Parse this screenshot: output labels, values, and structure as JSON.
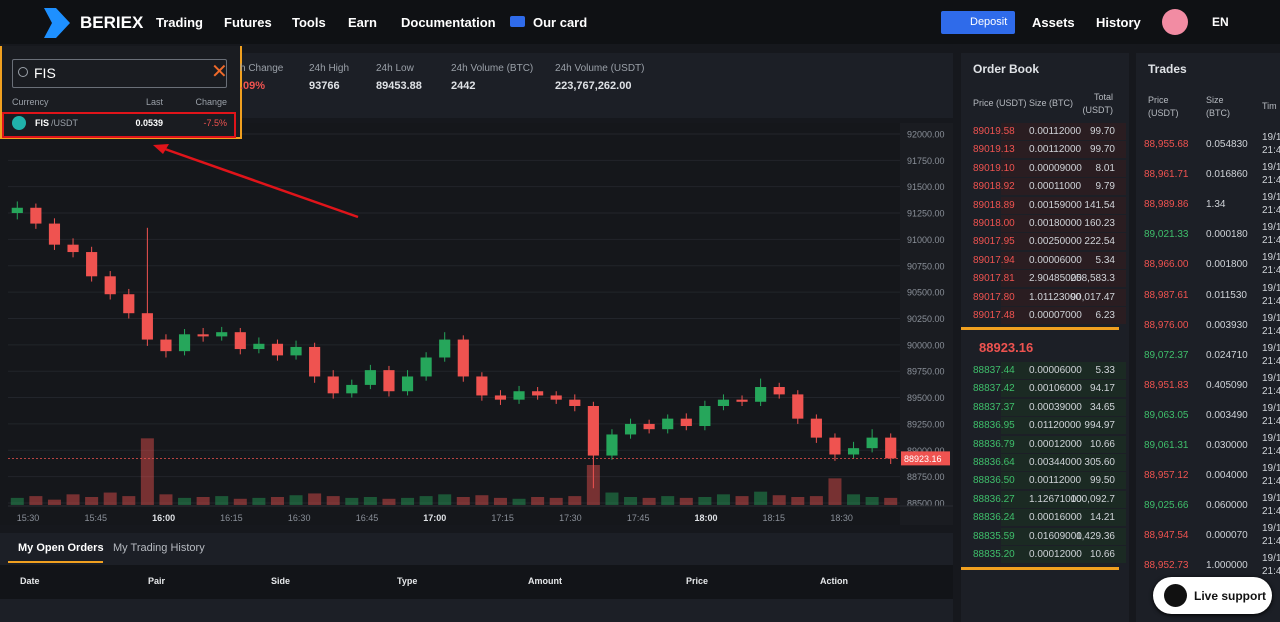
{
  "nav": {
    "logo": "BERIEX",
    "menu": [
      "Trading",
      "Futures",
      "Tools",
      "Earn",
      "Documentation",
      "Our card"
    ],
    "deposit": "Deposit",
    "right": [
      "Assets",
      "History"
    ],
    "lang": "EN"
  },
  "search": {
    "query": "FIS",
    "headers": [
      "Currency",
      "Last",
      "Change"
    ],
    "result": {
      "base": "FIS",
      "quote": "/USDT",
      "last": "0.0539",
      "change": "-7.5%"
    }
  },
  "stats": [
    {
      "label": "h Change",
      "value": ".09%"
    },
    {
      "label": "24h High",
      "value": "93766"
    },
    {
      "label": "24h Low",
      "value": "89453.88"
    },
    {
      "label": "24h Volume (BTC)",
      "value": "2442"
    },
    {
      "label": "24h Volume (USDT)",
      "value": "223,767,262.00"
    }
  ],
  "chart": {
    "type": "candlestick",
    "up_color": "#26a65b",
    "down_color": "#ef5350",
    "ylim": [
      88481,
      92085
    ],
    "yticks": [
      {
        "value": 92000,
        "label": "92000.00"
      },
      {
        "value": 91750,
        "label": "91750.00"
      },
      {
        "value": 91500,
        "label": "91500.00"
      },
      {
        "value": 91250,
        "label": "91250.00"
      },
      {
        "value": 91000,
        "label": "91000.00"
      },
      {
        "value": 90750,
        "label": "90750.00"
      },
      {
        "value": 90500,
        "label": "90500.00"
      },
      {
        "value": 90250,
        "label": "90250.00"
      },
      {
        "value": 90000,
        "label": "90000.00"
      },
      {
        "value": 89750,
        "label": "89750.00"
      },
      {
        "value": 89500,
        "label": "89500.00"
      },
      {
        "value": 89250,
        "label": "89250.00"
      },
      {
        "value": 89000,
        "label": "89000.00"
      },
      {
        "value": 88750,
        "label": "88750.00"
      },
      {
        "value": 88500,
        "label": "88500.00"
      }
    ],
    "x_labels": [
      "15:30",
      "15:45",
      "16:00",
      "16:15",
      "16:30",
      "16:45",
      "17:00",
      "17:15",
      "17:30",
      "17:45",
      "18:00",
      "18:15",
      "18:30"
    ],
    "last_price": {
      "value": 88923.16,
      "label": "88923.16"
    },
    "open": [
      91250,
      91300,
      91150,
      90950,
      90880,
      90650,
      90480,
      90300,
      90050,
      89940,
      90100,
      90080,
      90120,
      89960,
      90010,
      89900,
      89980,
      89700,
      89540,
      89620,
      89760,
      89560,
      89700,
      89880,
      90050,
      89700,
      89520,
      89480,
      89560,
      89520,
      89480,
      89420,
      88950,
      89150,
      89250,
      89200,
      89300,
      89230,
      89420,
      89480,
      89460,
      89600,
      89530,
      89300,
      89120,
      88960,
      89020,
      89120
    ],
    "high": [
      91360,
      91340,
      91200,
      91010,
      90930,
      90700,
      90530,
      91110,
      90100,
      90150,
      90160,
      90170,
      90160,
      90070,
      90050,
      90040,
      90020,
      89760,
      89670,
      89810,
      89800,
      89760,
      89930,
      90120,
      90090,
      89740,
      89570,
      89610,
      89600,
      89560,
      89530,
      89460,
      89200,
      89300,
      89290,
      89340,
      89350,
      89470,
      89530,
      89520,
      89680,
      89640,
      89570,
      89340,
      89160,
      89080,
      89200,
      89160
    ],
    "low": [
      91190,
      91100,
      90900,
      90830,
      90600,
      90430,
      90250,
      89990,
      89880,
      89900,
      90030,
      90040,
      89910,
      89920,
      89850,
      89860,
      89640,
      89490,
      89500,
      89580,
      89510,
      89520,
      89660,
      89840,
      89650,
      89470,
      89430,
      89440,
      89480,
      89440,
      89370,
      88640,
      88910,
      89110,
      89160,
      89160,
      89190,
      89190,
      89380,
      89420,
      89420,
      89490,
      89250,
      89070,
      88900,
      88920,
      88980,
      88870
    ],
    "close": [
      91300,
      91150,
      90950,
      90880,
      90650,
      90480,
      90300,
      90050,
      89940,
      90100,
      90080,
      90120,
      89960,
      90010,
      89900,
      89980,
      89700,
      89540,
      89620,
      89760,
      89560,
      89700,
      89880,
      90050,
      89700,
      89520,
      89480,
      89560,
      89520,
      89480,
      89420,
      88950,
      89150,
      89250,
      89200,
      89300,
      89230,
      89420,
      89480,
      89460,
      89600,
      89530,
      89300,
      89120,
      88960,
      89020,
      89120,
      88923.16
    ],
    "volume": [
      8,
      10,
      6,
      12,
      9,
      14,
      10,
      75,
      12,
      8,
      9,
      10,
      7,
      8,
      9,
      11,
      13,
      10,
      8,
      9,
      7,
      8,
      10,
      12,
      9,
      11,
      8,
      7,
      9,
      8,
      10,
      45,
      14,
      9,
      8,
      10,
      8,
      9,
      12,
      10,
      15,
      11,
      9,
      10,
      30,
      12,
      9,
      8
    ],
    "volume_lim": [
      0,
      90
    ]
  },
  "orders": {
    "tabs": [
      "My Open Orders",
      "My Trading History"
    ],
    "columns": [
      "Date",
      "Pair",
      "Side",
      "Type",
      "Amount",
      "Price",
      "Action"
    ]
  },
  "order_book": {
    "title": "Order Book",
    "headers": [
      "Price (USDT)",
      "Size (BTC)",
      "Total (USDT)"
    ],
    "ask_color": "#ef5350",
    "bid_color": "#3fbf6b",
    "asks": [
      [
        "89019.58",
        "0.00112000",
        "99.70"
      ],
      [
        "89019.13",
        "0.00112000",
        "99.70"
      ],
      [
        "89019.10",
        "0.00009000",
        "8.01"
      ],
      [
        "89018.92",
        "0.00011000",
        "9.79"
      ],
      [
        "89018.89",
        "0.00159000",
        "141.54"
      ],
      [
        "89018.00",
        "0.00180000",
        "160.23"
      ],
      [
        "89017.95",
        "0.00250000",
        "222.54"
      ],
      [
        "89017.94",
        "0.00006000",
        "5.34"
      ],
      [
        "89017.81",
        "2.90485000",
        "258,583.3"
      ],
      [
        "89017.80",
        "1.01123000",
        "90,017.47"
      ],
      [
        "89017.48",
        "0.00007000",
        "6.23"
      ]
    ],
    "mid": "88923.16",
    "bids": [
      [
        "88837.44",
        "0.00006000",
        "5.33"
      ],
      [
        "88837.42",
        "0.00106000",
        "94.17"
      ],
      [
        "88837.37",
        "0.00039000",
        "34.65"
      ],
      [
        "88836.95",
        "0.01120000",
        "994.97"
      ],
      [
        "88836.79",
        "0.00012000",
        "10.66"
      ],
      [
        "88836.64",
        "0.00344000",
        "305.60"
      ],
      [
        "88836.50",
        "0.00112000",
        "99.50"
      ],
      [
        "88836.27",
        "1.12671000",
        "100,092.7"
      ],
      [
        "88836.24",
        "0.00016000",
        "14.21"
      ],
      [
        "88835.59",
        "0.01609000",
        "1,429.36"
      ],
      [
        "88835.20",
        "0.00012000",
        "10.66"
      ]
    ]
  },
  "trades": {
    "title": "Trades",
    "headers": [
      "Price (USDT)",
      "Size (BTC)",
      "Tim"
    ],
    "date": "19/1",
    "time": "21:4",
    "rows": [
      {
        "price": "88,955.68",
        "size": "0.054830",
        "color": "#ef5350"
      },
      {
        "price": "88,961.71",
        "size": "0.016860",
        "color": "#ef5350"
      },
      {
        "price": "88,989.86",
        "size": "1.34",
        "color": "#ef5350"
      },
      {
        "price": "89,021.33",
        "size": "0.000180",
        "color": "#3fbf6b"
      },
      {
        "price": "88,966.00",
        "size": "0.001800",
        "color": "#ef5350"
      },
      {
        "price": "88,987.61",
        "size": "0.011530",
        "color": "#ef5350"
      },
      {
        "price": "88,976.00",
        "size": "0.003930",
        "color": "#ef5350"
      },
      {
        "price": "89,072.37",
        "size": "0.024710",
        "color": "#3fbf6b"
      },
      {
        "price": "88,951.83",
        "size": "0.405090",
        "color": "#ef5350"
      },
      {
        "price": "89,063.05",
        "size": "0.003490",
        "color": "#3fbf6b"
      },
      {
        "price": "89,061.31",
        "size": "0.030000",
        "color": "#3fbf6b"
      },
      {
        "price": "88,957.12",
        "size": "0.004000",
        "color": "#ef5350"
      },
      {
        "price": "89,025.66",
        "size": "0.060000",
        "color": "#3fbf6b"
      },
      {
        "price": "88,947.54",
        "size": "0.000070",
        "color": "#ef5350"
      },
      {
        "price": "88,952.73",
        "size": "1.000000",
        "color": "#ef5350"
      }
    ]
  },
  "support": "Live support"
}
